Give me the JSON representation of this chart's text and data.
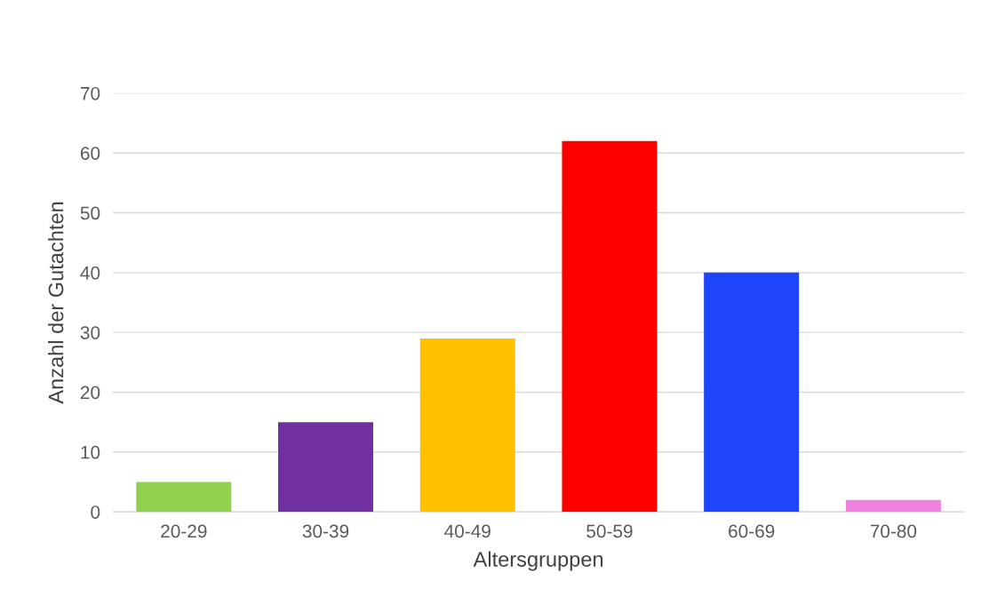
{
  "chart_data": {
    "type": "bar",
    "xlabel": "Altersgruppen",
    "ylabel": "Anzahl der Gutachten",
    "categories": [
      "20-29",
      "30-39",
      "40-49",
      "50-59",
      "60-69",
      "70-80"
    ],
    "values": [
      5,
      15,
      29,
      62,
      40,
      2
    ],
    "colors": [
      "#92d050",
      "#7030a0",
      "#ffc000",
      "#ff0000",
      "#1f45fc",
      "#ee82dd"
    ],
    "ylim": [
      0,
      70
    ],
    "yticks": [
      0,
      10,
      20,
      30,
      40,
      50,
      60,
      70
    ],
    "grid": "y"
  }
}
